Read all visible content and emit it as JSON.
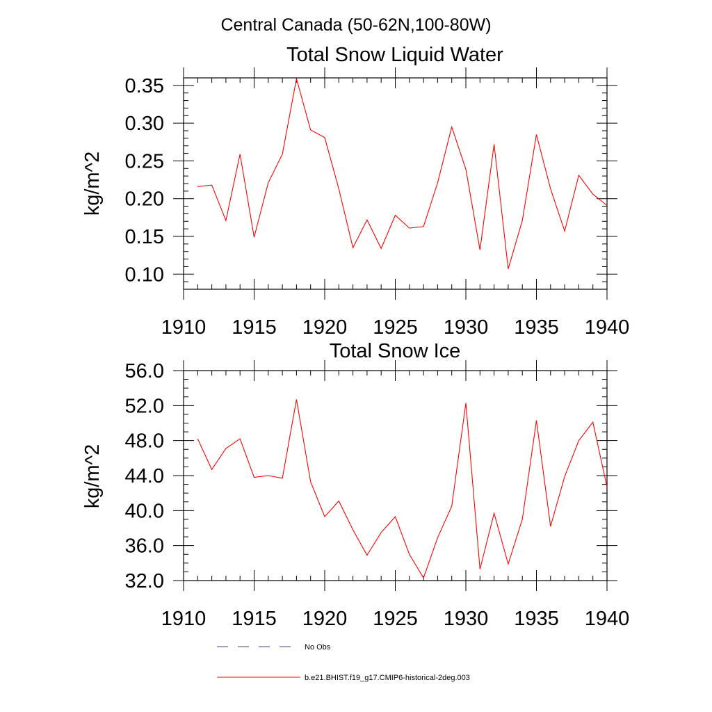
{
  "figure": {
    "supertitle": "Central Canada (50-62N,100-80W)"
  },
  "chart_data": [
    {
      "type": "line",
      "title": "Total Snow Liquid Water",
      "xlabel": "",
      "ylabel": "kg/m^2",
      "xlim": [
        1910,
        1940
      ],
      "ylim": [
        0.08,
        0.36
      ],
      "x_ticks": [
        1910,
        1915,
        1920,
        1925,
        1930,
        1935,
        1940
      ],
      "y_ticks": [
        0.1,
        0.15,
        0.2,
        0.25,
        0.3,
        0.35
      ],
      "y_tick_labels": [
        "0.10",
        "0.15",
        "0.20",
        "0.25",
        "0.30",
        "0.35"
      ],
      "x_minor_step": 1,
      "y_minor_step": 0.01,
      "grid": false,
      "x": [
        1911,
        1912,
        1913,
        1914,
        1915,
        1916,
        1917,
        1918,
        1919,
        1920,
        1921,
        1922,
        1923,
        1924,
        1925,
        1926,
        1927,
        1928,
        1929,
        1930,
        1931,
        1932,
        1933,
        1934,
        1935,
        1936,
        1937,
        1938,
        1939,
        1940
      ],
      "series": [
        {
          "name": "b.e21.BHIST.f19_g17.CMIP6-historical-2deg.003",
          "color": "#ff0000",
          "values": [
            0.216,
            0.218,
            0.171,
            0.259,
            0.149,
            0.221,
            0.259,
            0.359,
            0.291,
            0.281,
            0.213,
            0.135,
            0.172,
            0.134,
            0.178,
            0.161,
            0.163,
            0.221,
            0.295,
            0.239,
            0.132,
            0.272,
            0.107,
            0.171,
            0.285,
            0.213,
            0.157,
            0.231,
            0.206,
            0.191
          ]
        }
      ]
    },
    {
      "type": "line",
      "title": "Total Snow Ice",
      "xlabel": "",
      "ylabel": "kg/m^2",
      "xlim": [
        1910,
        1940
      ],
      "ylim": [
        32.0,
        56.0
      ],
      "x_ticks": [
        1910,
        1915,
        1920,
        1925,
        1930,
        1935,
        1940
      ],
      "y_ticks": [
        32,
        36,
        40,
        44,
        48,
        52,
        56
      ],
      "y_tick_labels": [
        "32.0",
        "36.0",
        "40.0",
        "44.0",
        "48.0",
        "52.0",
        "56.0"
      ],
      "x_minor_step": 1,
      "y_minor_step": 1,
      "grid": false,
      "x": [
        1911,
        1912,
        1913,
        1914,
        1915,
        1916,
        1917,
        1918,
        1919,
        1920,
        1921,
        1922,
        1923,
        1924,
        1925,
        1926,
        1927,
        1928,
        1929,
        1930,
        1931,
        1932,
        1933,
        1934,
        1935,
        1936,
        1937,
        1938,
        1939,
        1940
      ],
      "series": [
        {
          "name": "b.e21.BHIST.f19_g17.CMIP6-historical-2deg.003",
          "color": "#ff0000",
          "values": [
            48.2,
            44.7,
            47.1,
            48.2,
            43.8,
            44.0,
            43.7,
            52.7,
            43.3,
            39.3,
            41.1,
            37.8,
            34.9,
            37.5,
            39.3,
            35.0,
            32.3,
            36.9,
            40.5,
            52.3,
            33.3,
            39.7,
            33.9,
            39.0,
            50.3,
            38.2,
            43.9,
            48.0,
            50.1,
            42.7
          ]
        }
      ]
    }
  ],
  "legend": {
    "placement": "bottom",
    "items": [
      {
        "label": "No Obs",
        "style": "dashed",
        "color": "#44448a"
      },
      {
        "label": "b.e21.BHIST.f19_g17.CMIP6-historical-2deg.003",
        "style": "solid",
        "color": "#ff0000"
      }
    ]
  }
}
